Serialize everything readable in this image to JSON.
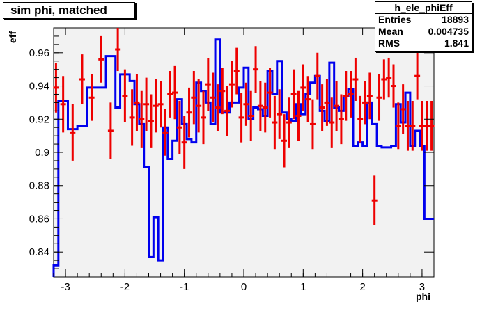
{
  "chart_data": {
    "type": "step-with-errorbars",
    "title": "sim phi, matched",
    "xlabel": "phi",
    "ylabel": "eff",
    "xlim": [
      -3.2,
      3.2
    ],
    "ylim": [
      0.825,
      0.975
    ],
    "xticks": [
      -3,
      -2,
      -1,
      0,
      1,
      2,
      3
    ],
    "yticks": [
      0.84,
      0.86,
      0.88,
      0.9,
      0.92,
      0.94,
      0.96
    ],
    "grid": false,
    "stats": {
      "name": "h_ele_phiEff",
      "rows": [
        {
          "label": "Entries",
          "value": "18893"
        },
        {
          "label": "Mean",
          "value": "0.004735"
        },
        {
          "label": "RMS",
          "value": "1.841"
        }
      ]
    },
    "series": [
      {
        "color": "#0000ee",
        "kind": "step",
        "x_edges": [
          -3.2,
          -3.12,
          -2.96,
          -2.8,
          -2.64,
          -2.48,
          -2.32,
          -2.16,
          -2.08,
          -1.92,
          -1.84,
          -1.76,
          -1.68,
          -1.6,
          -1.52,
          -1.44,
          -1.36,
          -1.28,
          -1.2,
          -1.12,
          -1.04,
          -0.96,
          -0.88,
          -0.8,
          -0.72,
          -0.64,
          -0.56,
          -0.48,
          -0.4,
          -0.32,
          -0.24,
          -0.16,
          -0.08,
          0.0,
          0.08,
          0.16,
          0.24,
          0.32,
          0.4,
          0.48,
          0.56,
          0.64,
          0.72,
          0.8,
          0.88,
          0.96,
          1.04,
          1.12,
          1.2,
          1.28,
          1.36,
          1.44,
          1.52,
          1.6,
          1.68,
          1.76,
          1.84,
          1.92,
          2.0,
          2.08,
          2.16,
          2.24,
          2.32,
          2.4,
          2.48,
          2.56,
          2.64,
          2.72,
          2.8,
          2.88,
          2.96,
          3.04,
          3.12,
          3.2
        ],
        "y": [
          0.832,
          0.931,
          0.914,
          0.916,
          0.939,
          0.939,
          0.958,
          0.927,
          0.947,
          0.943,
          0.929,
          0.917,
          0.891,
          0.837,
          0.861,
          0.835,
          0.915,
          0.896,
          0.907,
          0.932,
          0.917,
          0.908,
          0.906,
          0.942,
          0.937,
          0.93,
          0.917,
          0.968,
          0.924,
          0.924,
          0.93,
          0.93,
          0.939,
          0.951,
          0.92,
          0.927,
          0.926,
          0.922,
          0.949,
          0.935,
          0.955,
          0.924,
          0.92,
          0.919,
          0.929,
          0.923,
          0.935,
          0.942,
          0.946,
          0.925,
          0.919,
          0.954,
          0.927,
          0.925,
          0.934,
          0.938,
          0.904,
          0.906,
          0.904,
          0.93,
          0.917,
          0.904,
          0.903,
          0.903,
          0.904,
          0.929,
          0.918,
          0.936,
          0.904,
          0.913,
          0.904,
          0.86,
          0.86
        ]
      },
      {
        "color": "#ee0000",
        "kind": "errorbars",
        "x": [
          -3.16,
          -3.04,
          -2.88,
          -2.72,
          -2.56,
          -2.4,
          -2.24,
          -2.12,
          -2.0,
          -1.88,
          -1.8,
          -1.72,
          -1.64,
          -1.56,
          -1.48,
          -1.4,
          -1.32,
          -1.24,
          -1.16,
          -1.08,
          -1.0,
          -0.92,
          -0.84,
          -0.76,
          -0.68,
          -0.6,
          -0.52,
          -0.44,
          -0.36,
          -0.28,
          -0.2,
          -0.12,
          -0.04,
          0.04,
          0.12,
          0.2,
          0.28,
          0.36,
          0.44,
          0.52,
          0.6,
          0.68,
          0.76,
          0.84,
          0.92,
          1.0,
          1.08,
          1.16,
          1.24,
          1.32,
          1.4,
          1.48,
          1.56,
          1.64,
          1.72,
          1.8,
          1.88,
          1.96,
          2.04,
          2.12,
          2.2,
          2.28,
          2.36,
          2.44,
          2.52,
          2.6,
          2.68,
          2.76,
          2.84,
          2.92,
          3.0,
          3.08,
          3.16
        ],
        "y": [
          0.939,
          0.929,
          0.912,
          0.944,
          0.933,
          0.956,
          0.913,
          0.962,
          0.934,
          0.921,
          0.93,
          0.92,
          0.929,
          0.919,
          0.928,
          0.929,
          0.912,
          0.935,
          0.936,
          0.915,
          0.906,
          0.924,
          0.933,
          0.928,
          0.921,
          0.941,
          0.933,
          0.927,
          0.937,
          0.925,
          0.941,
          0.949,
          0.921,
          0.929,
          0.922,
          0.95,
          0.928,
          0.927,
          0.936,
          0.918,
          0.923,
          0.907,
          0.918,
          0.935,
          0.922,
          0.939,
          0.932,
          0.917,
          0.946,
          0.927,
          0.93,
          0.918,
          0.928,
          0.92,
          0.934,
          0.935,
          0.944,
          0.92,
          0.93,
          0.934,
          0.871,
          0.933,
          0.944,
          0.945,
          0.94,
          0.916,
          0.926,
          0.916,
          0.916,
          0.946,
          0.916,
          0.916,
          0.916
        ],
        "yerr": [
          0.015,
          0.017,
          0.017,
          0.015,
          0.014,
          0.014,
          0.017,
          0.013,
          0.016,
          0.017,
          0.017,
          0.017,
          0.016,
          0.016,
          0.016,
          0.014,
          0.014,
          0.014,
          0.016,
          0.016,
          0.016,
          0.015,
          0.016,
          0.016,
          0.016,
          0.016,
          0.015,
          0.014,
          0.014,
          0.015,
          0.014,
          0.014,
          0.015,
          0.013,
          0.015,
          0.014,
          0.015,
          0.015,
          0.015,
          0.016,
          0.015,
          0.016,
          0.015,
          0.015,
          0.015,
          0.014,
          0.014,
          0.015,
          0.014,
          0.014,
          0.014,
          0.015,
          0.015,
          0.015,
          0.015,
          0.014,
          0.013,
          0.014,
          0.013,
          0.014,
          0.015,
          0.014,
          0.012,
          0.012,
          0.013,
          0.014,
          0.015,
          0.015,
          0.015,
          0.014,
          0.015,
          0.015,
          0.015
        ]
      }
    ]
  }
}
